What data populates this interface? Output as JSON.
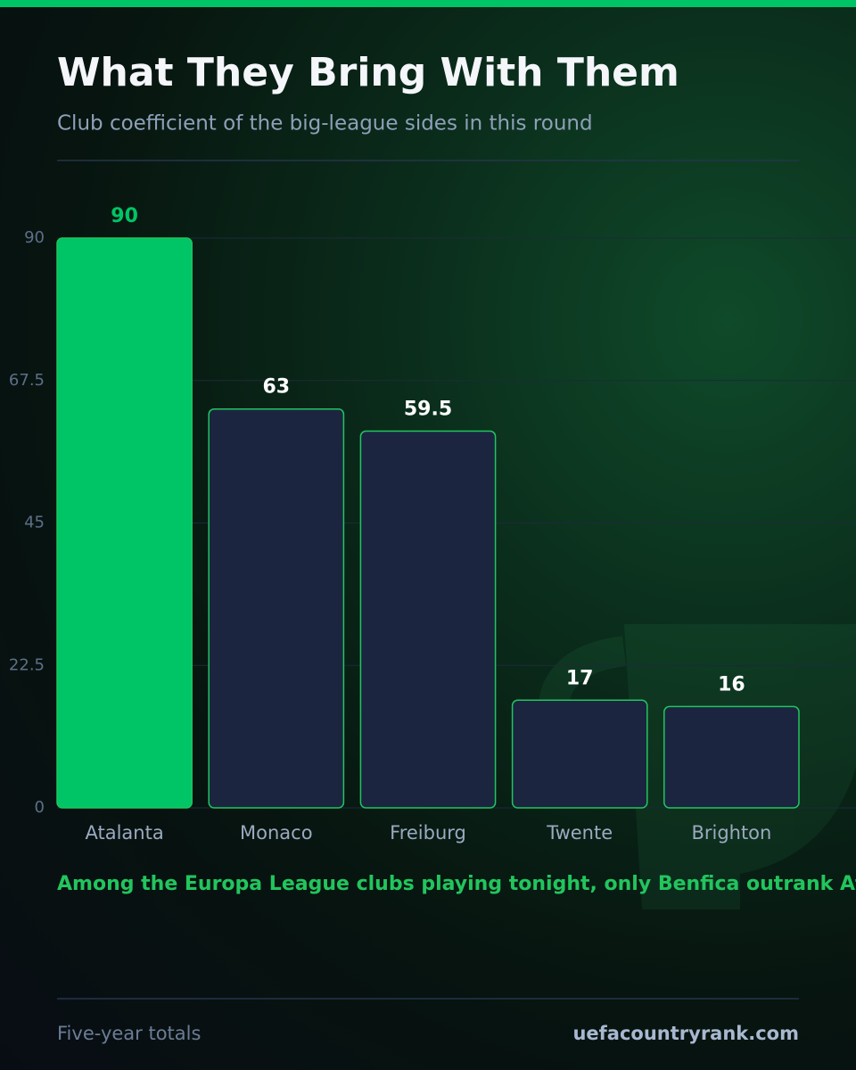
{
  "header": {
    "title": "What They Bring With Them",
    "subtitle": "Club coefficient of the big-league sides in this round"
  },
  "chart_data": {
    "type": "bar",
    "categories": [
      "Atalanta",
      "Monaco",
      "Freiburg",
      "Twente",
      "Brighton"
    ],
    "values": [
      90,
      63,
      59.5,
      17,
      16
    ],
    "colors": [
      "#00c566",
      "#1b2540",
      "#1b2540",
      "#1b2540",
      "#1b2540"
    ],
    "outline_color": "#22c55e",
    "value_label_colors": [
      "#00c566",
      "#ffffff",
      "#ffffff",
      "#ffffff",
      "#ffffff"
    ],
    "ylim": [
      0,
      90
    ],
    "yticks": [
      0,
      22.5,
      45,
      67.5,
      90
    ],
    "grid": true,
    "annotation": "Among the Europa League clubs playing tonight, only Benfica outrank Atalanta"
  },
  "footer": {
    "note": "Five-year totals",
    "source": "uefacountryrank.com"
  }
}
